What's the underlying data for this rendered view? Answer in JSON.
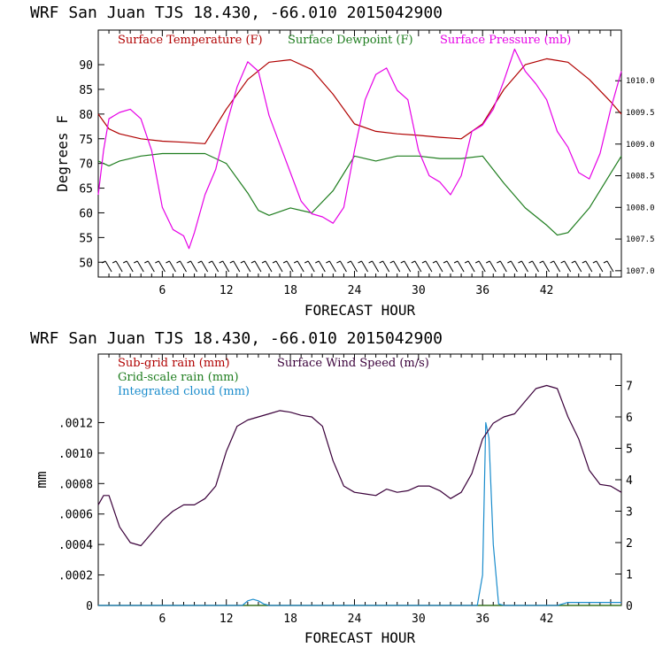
{
  "chart_data": [
    {
      "type": "line",
      "title": "WRF   San Juan TJS  18.430, -66.010  2015042900",
      "xlabel": "FORECAST HOUR",
      "ylabel": "Degrees F",
      "xlim": [
        0,
        49
      ],
      "ylim": [
        47,
        97
      ],
      "xticks": [
        6,
        12,
        18,
        24,
        30,
        36,
        42
      ],
      "yticks": [
        50,
        55,
        60,
        65,
        70,
        75,
        80,
        85,
        90
      ],
      "y2lim": [
        1006.9,
        1010.8
      ],
      "y2ticks": [
        "1007.0",
        "1007.5",
        "1008.0",
        "1008.5",
        "1009.0",
        "1009.5",
        "1010.0"
      ],
      "wind_barbs": "bottom row",
      "series": [
        {
          "name": "Surface Temperature (F)",
          "color": "#b00000",
          "axis": "left",
          "x": [
            0,
            1,
            2,
            4,
            6,
            8,
            10,
            12,
            14,
            16,
            18,
            20,
            22,
            24,
            26,
            28,
            30,
            32,
            34,
            36,
            38,
            40,
            42,
            44,
            46,
            48,
            49
          ],
          "values": [
            80,
            77,
            76,
            75,
            74.5,
            74.3,
            74,
            81,
            87,
            90.5,
            91,
            89,
            84,
            78,
            76.5,
            76,
            75.7,
            75.3,
            75,
            78,
            85,
            90,
            91.2,
            90.5,
            87,
            82.5,
            80
          ]
        },
        {
          "name": "Surface Dewpoint (F)",
          "color": "#1e7d1e",
          "axis": "left",
          "x": [
            0,
            1,
            2,
            4,
            6,
            8,
            10,
            12,
            14,
            15,
            16,
            18,
            20,
            22,
            24,
            26,
            28,
            30,
            32,
            34,
            36,
            38,
            40,
            42,
            43,
            44,
            46,
            48,
            49
          ],
          "values": [
            70.5,
            69.5,
            70.5,
            71.5,
            72,
            72,
            72,
            70,
            64,
            60.5,
            59.5,
            61,
            60,
            64.5,
            71.5,
            70.5,
            71.5,
            71.5,
            71,
            71,
            71.5,
            66,
            61,
            57.5,
            55.5,
            56,
            61,
            68,
            71.5
          ]
        },
        {
          "name": "Surface Pressure (mb)",
          "color": "#e600e6",
          "axis": "right",
          "x": [
            0,
            0.5,
            1,
            2,
            3,
            4,
            5,
            6,
            7,
            8,
            8.5,
            9,
            10,
            11,
            12,
            13,
            14,
            15,
            16,
            17,
            18,
            19,
            20,
            21,
            22,
            23,
            24,
            25,
            26,
            27,
            28,
            29,
            30,
            31,
            32,
            33,
            34,
            35,
            36,
            37,
            38,
            39,
            40,
            41,
            42,
            43,
            44,
            45,
            46,
            47,
            48,
            49
          ],
          "values": [
            1008.2,
            1008.9,
            1009.4,
            1009.5,
            1009.55,
            1009.4,
            1008.9,
            1008.0,
            1007.65,
            1007.55,
            1007.35,
            1007.6,
            1008.2,
            1008.6,
            1009.3,
            1009.9,
            1010.3,
            1010.15,
            1009.45,
            1009.0,
            1008.55,
            1008.1,
            1007.9,
            1007.85,
            1007.75,
            1008.0,
            1008.9,
            1009.7,
            1010.1,
            1010.2,
            1009.85,
            1009.7,
            1008.9,
            1008.5,
            1008.4,
            1008.2,
            1008.5,
            1009.2,
            1009.3,
            1009.55,
            1010.0,
            1010.5,
            1010.15,
            1009.95,
            1009.7,
            1009.2,
            1008.95,
            1008.55,
            1008.45,
            1008.85,
            1009.55,
            1010.15
          ]
        }
      ],
      "legend": [
        "Surface Temperature (F)",
        "Surface Dewpoint (F)",
        "Surface Pressure (mb)"
      ],
      "legend_placement": "top"
    },
    {
      "type": "line",
      "title": "WRF   San Juan TJS  18.430, -66.010  2015042900",
      "xlabel": "FORECAST HOUR",
      "ylabel": "mm",
      "xlim": [
        0,
        49
      ],
      "ylim": [
        0,
        0.00165
      ],
      "xticks": [
        6,
        12,
        18,
        24,
        30,
        36,
        42
      ],
      "yticks": [
        "0",
        ".0002",
        ".0004",
        ".0006",
        ".0008",
        ".0010",
        ".0012"
      ],
      "y2lim": [
        0,
        8
      ],
      "y2ticks": [
        0,
        1,
        2,
        3,
        4,
        5,
        6,
        7
      ],
      "series": [
        {
          "name": "Sub-grid rain (mm)",
          "color": "#b00000",
          "axis": "left",
          "x": [
            0,
            49
          ],
          "values": [
            0,
            0
          ]
        },
        {
          "name": "Grid-scale rain (mm)",
          "color": "#1e7d1e",
          "axis": "left",
          "x": [
            0,
            49
          ],
          "values": [
            0,
            0
          ]
        },
        {
          "name": "Integrated cloud (mm)",
          "color": "#1a8ccc",
          "axis": "left",
          "x": [
            0,
            13.5,
            14,
            14.5,
            15,
            15.5,
            16,
            35.5,
            36,
            36.3,
            36.6,
            37,
            37.5,
            38,
            43,
            44,
            49
          ],
          "values": [
            0,
            0,
            3e-05,
            4e-05,
            3e-05,
            1e-05,
            0,
            0,
            0.0002,
            0.0012,
            0.0011,
            0.0004,
            1e-05,
            0,
            0,
            2e-05,
            2e-05
          ]
        },
        {
          "name": "Surface Wind Speed (m/s)",
          "color": "#3a003a",
          "axis": "right",
          "x": [
            0,
            0.5,
            1,
            2,
            3,
            4,
            5,
            6,
            7,
            8,
            9,
            10,
            11,
            12,
            13,
            14,
            15,
            16,
            17,
            18,
            19,
            20,
            21,
            22,
            23,
            24,
            25,
            26,
            27,
            28,
            29,
            30,
            31,
            32,
            33,
            34,
            35,
            36,
            37,
            38,
            39,
            40,
            41,
            42,
            43,
            44,
            45,
            46,
            47,
            48,
            49
          ],
          "values": [
            3.2,
            3.5,
            3.5,
            2.5,
            2.0,
            1.9,
            2.3,
            2.7,
            3.0,
            3.2,
            3.2,
            3.4,
            3.8,
            4.9,
            5.7,
            5.9,
            6.0,
            6.1,
            6.2,
            6.15,
            6.05,
            6.0,
            5.7,
            4.6,
            3.8,
            3.6,
            3.55,
            3.5,
            3.7,
            3.6,
            3.65,
            3.8,
            3.8,
            3.65,
            3.4,
            3.6,
            4.2,
            5.3,
            5.8,
            6.0,
            6.1,
            6.5,
            6.9,
            7.0,
            6.9,
            6.0,
            5.3,
            4.3,
            3.85,
            3.8,
            3.6
          ]
        }
      ],
      "legend": [
        "Sub-grid rain (mm)",
        "Surface Wind Speed (m/s)",
        "Grid-scale rain (mm)",
        "Integrated cloud (mm)"
      ],
      "legend_placement": "top-left"
    }
  ]
}
